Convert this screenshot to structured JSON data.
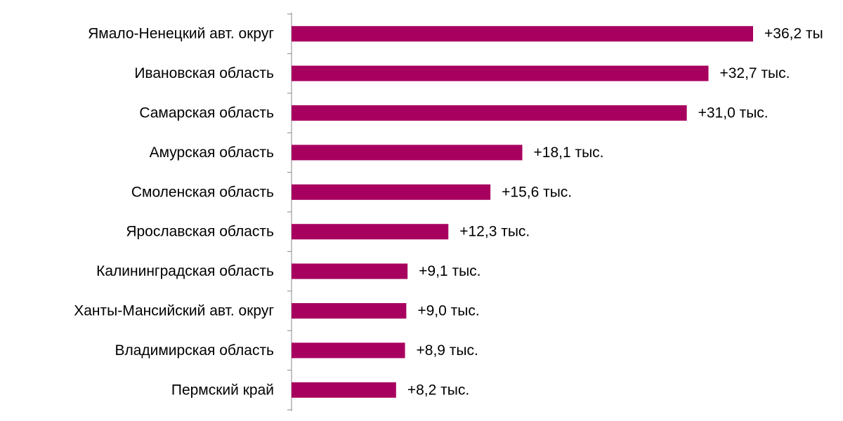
{
  "chart_data": {
    "type": "hbar",
    "categories": [
      "Ямало-Ненецкий авт. округ",
      "Ивановская область",
      "Самарская область",
      "Амурская область",
      "Смоленская область",
      "Ярославская область",
      "Калининградская область",
      "Ханты-Мансийский авт. округ",
      "Владимирская область",
      "Пермский край"
    ],
    "values": [
      36.2,
      32.7,
      31.0,
      18.1,
      15.6,
      12.3,
      9.1,
      9.0,
      8.9,
      8.2
    ],
    "value_labels": [
      "+36,2 ты",
      "+32,7 тыс.",
      "+31,0 тыс.",
      "+18,1 тыс.",
      "+15,6 тыс.",
      "+12,3 тыс.",
      "+9,1 тыс.",
      "+9,0 тыс.",
      "+8,9 тыс.",
      "+8,2 тыс."
    ],
    "color": "#a8005f"
  }
}
